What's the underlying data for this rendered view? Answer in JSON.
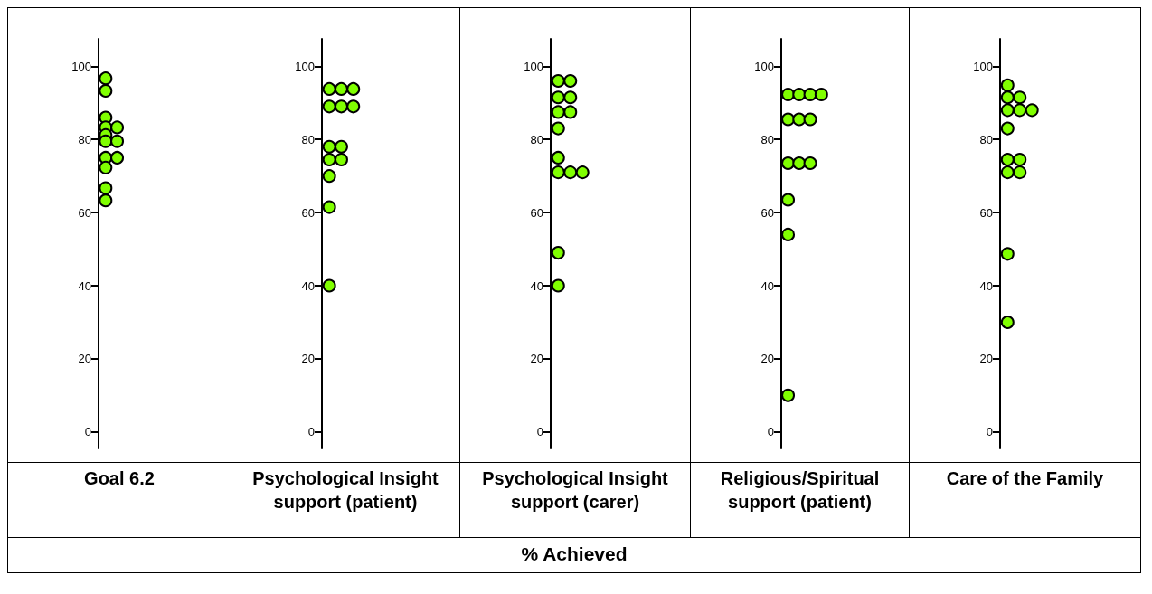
{
  "chart_data": [
    {
      "type": "scatter",
      "categories": [
        "Goal 6.2"
      ],
      "marker": "circle",
      "grid": false,
      "ylim": [
        -4.5,
        107.5
      ],
      "yticks": [
        0,
        20,
        40,
        60,
        80,
        100
      ],
      "series": [
        {
          "color": "#80ff00",
          "x": [
            "Goal 6.2",
            "Goal 6.2",
            "Goal 6.2",
            "Goal 6.2",
            "Goal 6.2",
            "Goal 6.2",
            "Goal 6.2",
            "Goal 6.2",
            "Goal 6.2",
            "Goal 6.2",
            "Goal 6.2",
            "Goal 6.2",
            "Goal 6.2"
          ],
          "values": [
            96.7,
            93.3,
            86,
            83.3,
            83.3,
            81.2,
            79.5,
            79.5,
            75,
            75,
            72.3,
            66.7,
            63.3
          ]
        }
      ]
    },
    {
      "type": "scatter",
      "categories": [
        "Psychological Insight support (patient)"
      ],
      "marker": "circle",
      "grid": false,
      "ylim": [
        -4.5,
        107.5
      ],
      "yticks": [
        0,
        20,
        40,
        60,
        80,
        100
      ],
      "series": [
        {
          "color": "#80ff00",
          "x": [
            "Psychological Insight support (patient)",
            "Psychological Insight support (patient)",
            "Psychological Insight support (patient)",
            "Psychological Insight support (patient)",
            "Psychological Insight support (patient)",
            "Psychological Insight support (patient)",
            "Psychological Insight support (patient)",
            "Psychological Insight support (patient)",
            "Psychological Insight support (patient)",
            "Psychological Insight support (patient)",
            "Psychological Insight support (patient)",
            "Psychological Insight support (patient)",
            "Psychological Insight support (patient)"
          ],
          "values": [
            93.8,
            93.8,
            93.8,
            89,
            89,
            89,
            78,
            78,
            74.5,
            74.5,
            70,
            61.5,
            40
          ]
        }
      ]
    },
    {
      "type": "scatter",
      "categories": [
        "Psychological Insight support (carer)"
      ],
      "xlabel": "% Achieved",
      "marker": "circle",
      "grid": false,
      "ylim": [
        -4.5,
        107.5
      ],
      "yticks": [
        0,
        20,
        40,
        60,
        80,
        100
      ],
      "series": [
        {
          "color": "#80ff00",
          "x": [
            "Psychological Insight support (carer)",
            "Psychological Insight support (carer)",
            "Psychological Insight support (carer)",
            "Psychological Insight support (carer)",
            "Psychological Insight support (carer)",
            "Psychological Insight support (carer)",
            "Psychological Insight support (carer)",
            "Psychological Insight support (carer)",
            "Psychological Insight support (carer)",
            "Psychological Insight support (carer)",
            "Psychological Insight support (carer)",
            "Psychological Insight support (carer)",
            "Psychological Insight support (carer)"
          ],
          "values": [
            96,
            96,
            91.5,
            91.5,
            87.5,
            87.5,
            83,
            75,
            71,
            71,
            71,
            49,
            40
          ]
        }
      ]
    },
    {
      "type": "scatter",
      "categories": [
        "Religious/Spiritual support (patient)"
      ],
      "marker": "circle",
      "grid": false,
      "ylim": [
        -4.5,
        107.5
      ],
      "yticks": [
        0,
        20,
        40,
        60,
        80,
        100
      ],
      "series": [
        {
          "color": "#80ff00",
          "x": [
            "Religious/Spiritual support (patient)",
            "Religious/Spiritual support (patient)",
            "Religious/Spiritual support (patient)",
            "Religious/Spiritual support (patient)",
            "Religious/Spiritual support (patient)",
            "Religious/Spiritual support (patient)",
            "Religious/Spiritual support (patient)",
            "Religious/Spiritual support (patient)",
            "Religious/Spiritual support (patient)",
            "Religious/Spiritual support (patient)",
            "Religious/Spiritual support (patient)",
            "Religious/Spiritual support (patient)",
            "Religious/Spiritual support (patient)"
          ],
          "values": [
            92.3,
            92.3,
            92.3,
            92.3,
            85.5,
            85.5,
            85.5,
            73.5,
            73.5,
            73.5,
            63.5,
            54,
            10
          ]
        }
      ]
    },
    {
      "type": "scatter",
      "categories": [
        "Care of the Family"
      ],
      "marker": "circle",
      "grid": false,
      "ylim": [
        -4.5,
        107.5
      ],
      "yticks": [
        0,
        20,
        40,
        60,
        80,
        100
      ],
      "series": [
        {
          "color": "#80ff00",
          "x": [
            "Care of the Family",
            "Care of the Family",
            "Care of the Family",
            "Care of the Family",
            "Care of the Family",
            "Care of the Family",
            "Care of the Family",
            "Care of the Family",
            "Care of the Family",
            "Care of the Family",
            "Care of the Family",
            "Care of the Family",
            "Care of the Family"
          ],
          "values": [
            94.8,
            91.5,
            91.5,
            88,
            88,
            88,
            83,
            74.5,
            74.5,
            71,
            71,
            48.7,
            30
          ]
        }
      ]
    }
  ]
}
